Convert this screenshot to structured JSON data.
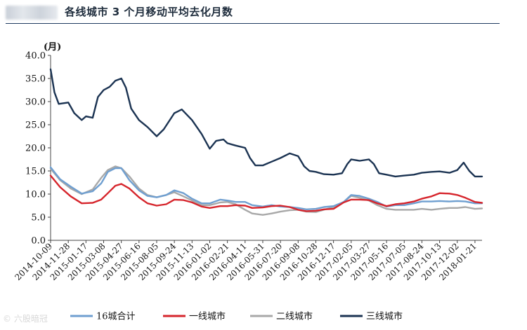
{
  "header": {
    "title": "各线城市 3 个月移动平均去化月数"
  },
  "watermark": {
    "text": "© 六股暗冠",
    "icon": "camera-watermark-icon"
  },
  "chart_data": {
    "type": "line",
    "title": "各线城市 3 个月移动平均去化月数",
    "ylabel": "(月)",
    "xlabel": "",
    "ylim": [
      0,
      40
    ],
    "yticks": [
      "40.0",
      "35.0",
      "30.0",
      "25.0",
      "20.0",
      "15.0",
      "10.0",
      "5.0",
      "0.0"
    ],
    "x_tick_labels": [
      "2014-10-09",
      "2014-11-28",
      "2015-01-17",
      "2015-03-08",
      "2015-04-27",
      "2015-06-16",
      "2015-08-05",
      "2015-09-24",
      "2015-11-13",
      "2016-01-02",
      "2016-02-21",
      "2016-04-11",
      "2016-05-31",
      "2016-07-20",
      "2016-09-08",
      "2016-10-28",
      "2016-12-17",
      "2017-02-05",
      "2017-03-27",
      "2017-05-16",
      "2017-07-05",
      "2017-08-24",
      "2017-10-13",
      "2017-12-02",
      "2018-01-21"
    ],
    "x_range": [
      "2014-10-09",
      "2018-02-10"
    ],
    "grid": false,
    "legend_position": "bottom",
    "series": [
      {
        "name": "16城合计",
        "color": "#6f9fd0",
        "points": [
          [
            "2014-10-09",
            15.8
          ],
          [
            "2014-11-05",
            13.2
          ],
          [
            "2014-12-05",
            11.6
          ],
          [
            "2015-01-05",
            10.1
          ],
          [
            "2015-02-05",
            10.6
          ],
          [
            "2015-03-01",
            12.3
          ],
          [
            "2015-03-20",
            14.8
          ],
          [
            "2015-04-10",
            15.6
          ],
          [
            "2015-04-27",
            15.6
          ],
          [
            "2015-05-20",
            13.0
          ],
          [
            "2015-06-16",
            10.8
          ],
          [
            "2015-07-10",
            9.6
          ],
          [
            "2015-08-05",
            9.3
          ],
          [
            "2015-09-01",
            9.8
          ],
          [
            "2015-09-24",
            10.8
          ],
          [
            "2015-10-20",
            10.2
          ],
          [
            "2015-11-13",
            9.0
          ],
          [
            "2015-12-10",
            8.0
          ],
          [
            "2016-01-02",
            8.0
          ],
          [
            "2016-02-01",
            8.8
          ],
          [
            "2016-02-21",
            8.6
          ],
          [
            "2016-03-15",
            8.3
          ],
          [
            "2016-04-11",
            8.3
          ],
          [
            "2016-05-01",
            7.6
          ],
          [
            "2016-05-31",
            7.3
          ],
          [
            "2016-06-25",
            7.6
          ],
          [
            "2016-07-20",
            7.3
          ],
          [
            "2016-08-15",
            7.2
          ],
          [
            "2016-09-08",
            7.0
          ],
          [
            "2016-10-01",
            6.7
          ],
          [
            "2016-10-28",
            6.8
          ],
          [
            "2016-11-20",
            7.2
          ],
          [
            "2016-12-17",
            7.4
          ],
          [
            "2017-01-15",
            8.3
          ],
          [
            "2017-02-05",
            9.8
          ],
          [
            "2017-03-01",
            9.6
          ],
          [
            "2017-03-27",
            9.0
          ],
          [
            "2017-04-20",
            8.3
          ],
          [
            "2017-05-16",
            7.3
          ],
          [
            "2017-06-10",
            7.6
          ],
          [
            "2017-07-05",
            7.6
          ],
          [
            "2017-08-01",
            8.0
          ],
          [
            "2017-08-24",
            8.4
          ],
          [
            "2017-09-20",
            8.4
          ],
          [
            "2017-10-13",
            8.5
          ],
          [
            "2017-11-10",
            8.4
          ],
          [
            "2017-12-02",
            8.5
          ],
          [
            "2017-12-25",
            8.4
          ],
          [
            "2018-01-21",
            8.0
          ],
          [
            "2018-02-10",
            8.0
          ]
        ]
      },
      {
        "name": "一线城市",
        "color": "#d6252c",
        "points": [
          [
            "2014-10-09",
            14.0
          ],
          [
            "2014-11-05",
            11.5
          ],
          [
            "2014-12-05",
            9.5
          ],
          [
            "2015-01-05",
            8.0
          ],
          [
            "2015-02-05",
            8.1
          ],
          [
            "2015-03-01",
            8.8
          ],
          [
            "2015-03-20",
            10.2
          ],
          [
            "2015-04-10",
            11.8
          ],
          [
            "2015-04-27",
            12.2
          ],
          [
            "2015-05-20",
            11.2
          ],
          [
            "2015-06-16",
            9.3
          ],
          [
            "2015-07-10",
            8.0
          ],
          [
            "2015-08-05",
            7.5
          ],
          [
            "2015-09-01",
            7.8
          ],
          [
            "2015-09-24",
            8.8
          ],
          [
            "2015-10-20",
            8.7
          ],
          [
            "2015-11-13",
            8.2
          ],
          [
            "2015-12-10",
            7.3
          ],
          [
            "2016-01-02",
            7.0
          ],
          [
            "2016-02-01",
            7.4
          ],
          [
            "2016-02-21",
            7.4
          ],
          [
            "2016-03-15",
            7.6
          ],
          [
            "2016-04-11",
            7.5
          ],
          [
            "2016-05-01",
            7.0
          ],
          [
            "2016-05-31",
            7.1
          ],
          [
            "2016-06-25",
            7.4
          ],
          [
            "2016-07-20",
            7.5
          ],
          [
            "2016-08-15",
            7.2
          ],
          [
            "2016-09-08",
            6.6
          ],
          [
            "2016-10-01",
            6.3
          ],
          [
            "2016-10-28",
            6.4
          ],
          [
            "2016-11-20",
            6.7
          ],
          [
            "2016-12-17",
            6.8
          ],
          [
            "2017-01-15",
            8.2
          ],
          [
            "2017-02-05",
            8.8
          ],
          [
            "2017-03-01",
            8.8
          ],
          [
            "2017-03-27",
            8.7
          ],
          [
            "2017-04-20",
            8.0
          ],
          [
            "2017-05-16",
            7.4
          ],
          [
            "2017-06-10",
            7.8
          ],
          [
            "2017-07-05",
            8.0
          ],
          [
            "2017-08-01",
            8.4
          ],
          [
            "2017-08-24",
            9.0
          ],
          [
            "2017-09-20",
            9.5
          ],
          [
            "2017-10-13",
            10.2
          ],
          [
            "2017-11-10",
            10.1
          ],
          [
            "2017-12-02",
            9.8
          ],
          [
            "2017-12-25",
            9.2
          ],
          [
            "2018-01-21",
            8.3
          ],
          [
            "2018-02-10",
            8.1
          ]
        ]
      },
      {
        "name": "二线城市",
        "color": "#a8a8a8",
        "points": [
          [
            "2014-10-09",
            15.5
          ],
          [
            "2014-11-05",
            13.0
          ],
          [
            "2014-12-05",
            11.2
          ],
          [
            "2015-01-05",
            10.0
          ],
          [
            "2015-02-05",
            11.0
          ],
          [
            "2015-03-01",
            13.5
          ],
          [
            "2015-03-20",
            15.2
          ],
          [
            "2015-04-10",
            16.0
          ],
          [
            "2015-04-27",
            15.6
          ],
          [
            "2015-05-20",
            13.8
          ],
          [
            "2015-06-16",
            11.2
          ],
          [
            "2015-07-10",
            9.8
          ],
          [
            "2015-08-05",
            9.3
          ],
          [
            "2015-09-01",
            9.8
          ],
          [
            "2015-09-24",
            10.4
          ],
          [
            "2015-10-20",
            9.5
          ],
          [
            "2015-11-13",
            8.6
          ],
          [
            "2015-12-10",
            7.6
          ],
          [
            "2016-01-02",
            7.6
          ],
          [
            "2016-02-01",
            8.2
          ],
          [
            "2016-02-21",
            8.3
          ],
          [
            "2016-03-15",
            7.8
          ],
          [
            "2016-04-11",
            6.6
          ],
          [
            "2016-05-01",
            5.8
          ],
          [
            "2016-05-31",
            5.5
          ],
          [
            "2016-06-25",
            5.8
          ],
          [
            "2016-07-20",
            6.2
          ],
          [
            "2016-08-15",
            6.5
          ],
          [
            "2016-09-08",
            6.6
          ],
          [
            "2016-10-01",
            6.2
          ],
          [
            "2016-10-28",
            6.1
          ],
          [
            "2016-11-20",
            6.6
          ],
          [
            "2016-12-17",
            7.2
          ],
          [
            "2017-01-15",
            8.3
          ],
          [
            "2017-02-05",
            9.6
          ],
          [
            "2017-03-01",
            9.2
          ],
          [
            "2017-03-27",
            8.6
          ],
          [
            "2017-04-20",
            7.6
          ],
          [
            "2017-05-16",
            6.8
          ],
          [
            "2017-06-10",
            6.6
          ],
          [
            "2017-07-05",
            6.6
          ],
          [
            "2017-08-01",
            6.6
          ],
          [
            "2017-08-24",
            6.8
          ],
          [
            "2017-09-20",
            6.6
          ],
          [
            "2017-10-13",
            6.8
          ],
          [
            "2017-11-10",
            7.0
          ],
          [
            "2017-12-02",
            7.0
          ],
          [
            "2017-12-25",
            7.2
          ],
          [
            "2018-01-21",
            6.8
          ],
          [
            "2018-02-10",
            6.9
          ]
        ]
      },
      {
        "name": "三线城市",
        "color": "#1b3352",
        "points": [
          [
            "2014-10-09",
            37.0
          ],
          [
            "2014-10-20",
            32.0
          ],
          [
            "2014-11-01",
            29.5
          ],
          [
            "2014-11-28",
            29.8
          ],
          [
            "2014-12-15",
            27.5
          ],
          [
            "2015-01-05",
            26.0
          ],
          [
            "2015-01-17",
            26.8
          ],
          [
            "2015-02-05",
            26.5
          ],
          [
            "2015-02-20",
            31.0
          ],
          [
            "2015-03-08",
            32.5
          ],
          [
            "2015-03-25",
            33.2
          ],
          [
            "2015-04-10",
            34.5
          ],
          [
            "2015-04-27",
            35.0
          ],
          [
            "2015-05-10",
            33.0
          ],
          [
            "2015-05-25",
            28.5
          ],
          [
            "2015-06-16",
            26.0
          ],
          [
            "2015-07-10",
            24.5
          ],
          [
            "2015-08-05",
            22.5
          ],
          [
            "2015-08-25",
            24.0
          ],
          [
            "2015-09-24",
            27.5
          ],
          [
            "2015-10-15",
            28.3
          ],
          [
            "2015-11-13",
            26.0
          ],
          [
            "2015-12-10",
            23.0
          ],
          [
            "2016-01-02",
            19.8
          ],
          [
            "2016-01-20",
            21.5
          ],
          [
            "2016-02-10",
            21.8
          ],
          [
            "2016-02-21",
            21.0
          ],
          [
            "2016-03-15",
            20.5
          ],
          [
            "2016-04-11",
            20.0
          ],
          [
            "2016-04-25",
            17.8
          ],
          [
            "2016-05-10",
            16.2
          ],
          [
            "2016-05-31",
            16.2
          ],
          [
            "2016-06-25",
            17.0
          ],
          [
            "2016-07-20",
            17.8
          ],
          [
            "2016-08-15",
            18.8
          ],
          [
            "2016-09-08",
            18.2
          ],
          [
            "2016-09-25",
            16.0
          ],
          [
            "2016-10-10",
            15.0
          ],
          [
            "2016-10-28",
            14.8
          ],
          [
            "2016-11-20",
            14.3
          ],
          [
            "2016-12-17",
            14.2
          ],
          [
            "2017-01-10",
            14.5
          ],
          [
            "2017-01-25",
            16.5
          ],
          [
            "2017-02-05",
            17.5
          ],
          [
            "2017-03-01",
            17.2
          ],
          [
            "2017-03-27",
            17.5
          ],
          [
            "2017-04-10",
            16.5
          ],
          [
            "2017-04-25",
            14.5
          ],
          [
            "2017-05-16",
            14.2
          ],
          [
            "2017-06-10",
            13.8
          ],
          [
            "2017-07-05",
            14.0
          ],
          [
            "2017-08-01",
            14.2
          ],
          [
            "2017-08-24",
            14.6
          ],
          [
            "2017-09-20",
            14.8
          ],
          [
            "2017-10-13",
            14.9
          ],
          [
            "2017-11-10",
            14.6
          ],
          [
            "2017-12-02",
            15.2
          ],
          [
            "2017-12-20",
            16.8
          ],
          [
            "2018-01-05",
            15.0
          ],
          [
            "2018-01-21",
            13.8
          ],
          [
            "2018-02-10",
            13.8
          ]
        ]
      }
    ]
  }
}
